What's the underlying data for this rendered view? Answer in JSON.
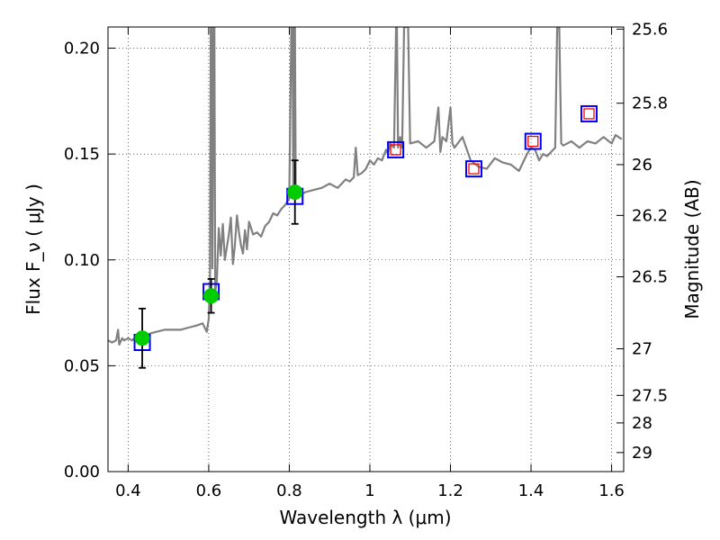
{
  "chart_data": {
    "type": "scatter",
    "xlabel": "Wavelength  λ (μm)",
    "ylabel": "Flux  F_ν  ( μJy )",
    "ylabel_right": "Magnitude (AB)",
    "xlim": [
      0.35,
      1.63
    ],
    "ylim": [
      0.0,
      0.21
    ],
    "grid": true,
    "x_ticks": [
      0.4,
      0.6,
      0.8,
      1.0,
      1.2,
      1.4,
      1.6
    ],
    "x_tick_labels": [
      "0.4",
      "0.6",
      "0.8",
      "1",
      "1.2",
      "1.4",
      "1.6"
    ],
    "y_ticks": [
      0.0,
      0.05,
      0.1,
      0.15,
      0.2
    ],
    "y_tick_labels": [
      "0.00",
      "0.05",
      "0.10",
      "0.15",
      "0.20"
    ],
    "right_ticks": [
      {
        "label": "25.6",
        "flux": 0.209
      },
      {
        "label": "25.8",
        "flux": 0.174
      },
      {
        "label": "26",
        "flux": 0.145
      },
      {
        "label": "26.2",
        "flux": 0.121
      },
      {
        "label": "26.5",
        "flux": 0.092
      },
      {
        "label": "27",
        "flux": 0.058
      },
      {
        "label": "27.5",
        "flux": 0.036
      },
      {
        "label": "28",
        "flux": 0.023
      },
      {
        "label": "29",
        "flux": 0.009
      }
    ],
    "colors": {
      "spectrum": "#808080",
      "observed": "#00cc00",
      "model_box": "#0000ff",
      "model_inner": "#ff0000",
      "errorbar": "#000000",
      "grid": "#000000"
    },
    "series": [
      {
        "kind": "line",
        "points": [
          [
            0.35,
            0.062
          ],
          [
            0.36,
            0.061
          ],
          [
            0.37,
            0.062
          ],
          [
            0.375,
            0.067
          ],
          [
            0.378,
            0.06
          ],
          [
            0.385,
            0.063
          ],
          [
            0.39,
            0.062
          ],
          [
            0.4,
            0.063
          ],
          [
            0.41,
            0.062
          ],
          [
            0.42,
            0.064
          ],
          [
            0.43,
            0.063
          ],
          [
            0.44,
            0.063
          ],
          [
            0.45,
            0.065
          ],
          [
            0.47,
            0.066
          ],
          [
            0.49,
            0.067
          ],
          [
            0.51,
            0.067
          ],
          [
            0.53,
            0.067
          ],
          [
            0.55,
            0.068
          ],
          [
            0.57,
            0.069
          ],
          [
            0.585,
            0.07
          ],
          [
            0.595,
            0.066
          ],
          [
            0.6,
            0.072
          ],
          [
            0.603,
            0.09
          ],
          [
            0.605,
            0.21
          ],
          [
            0.607,
            0.21
          ],
          [
            0.609,
            0.096
          ],
          [
            0.612,
            0.21
          ],
          [
            0.614,
            0.21
          ],
          [
            0.616,
            0.085
          ],
          [
            0.62,
            0.09
          ],
          [
            0.625,
            0.115
          ],
          [
            0.63,
            0.102
          ],
          [
            0.635,
            0.117
          ],
          [
            0.64,
            0.1
          ],
          [
            0.65,
            0.112
          ],
          [
            0.655,
            0.12
          ],
          [
            0.66,
            0.098
          ],
          [
            0.665,
            0.107
          ],
          [
            0.67,
            0.121
          ],
          [
            0.675,
            0.113
          ],
          [
            0.68,
            0.107
          ],
          [
            0.685,
            0.103
          ],
          [
            0.69,
            0.114
          ],
          [
            0.695,
            0.105
          ],
          [
            0.7,
            0.118
          ],
          [
            0.71,
            0.112
          ],
          [
            0.72,
            0.113
          ],
          [
            0.73,
            0.111
          ],
          [
            0.74,
            0.116
          ],
          [
            0.75,
            0.118
          ],
          [
            0.76,
            0.122
          ],
          [
            0.77,
            0.121
          ],
          [
            0.78,
            0.124
          ],
          [
            0.79,
            0.126
          ],
          [
            0.8,
            0.129
          ],
          [
            0.805,
            0.21
          ],
          [
            0.808,
            0.21
          ],
          [
            0.81,
            0.133
          ],
          [
            0.812,
            0.21
          ],
          [
            0.814,
            0.21
          ],
          [
            0.816,
            0.131
          ],
          [
            0.82,
            0.13
          ],
          [
            0.83,
            0.131
          ],
          [
            0.84,
            0.132
          ],
          [
            0.86,
            0.133
          ],
          [
            0.88,
            0.134
          ],
          [
            0.9,
            0.136
          ],
          [
            0.92,
            0.134
          ],
          [
            0.94,
            0.138
          ],
          [
            0.95,
            0.137
          ],
          [
            0.96,
            0.139
          ],
          [
            0.965,
            0.153
          ],
          [
            0.97,
            0.14
          ],
          [
            0.98,
            0.141
          ],
          [
            0.99,
            0.143
          ],
          [
            1.0,
            0.147
          ],
          [
            1.01,
            0.145
          ],
          [
            1.02,
            0.148
          ],
          [
            1.03,
            0.147
          ],
          [
            1.04,
            0.152
          ],
          [
            1.045,
            0.15
          ],
          [
            1.05,
            0.155
          ],
          [
            1.06,
            0.153
          ],
          [
            1.065,
            0.21
          ],
          [
            1.067,
            0.21
          ],
          [
            1.07,
            0.153
          ],
          [
            1.075,
            0.158
          ],
          [
            1.08,
            0.153
          ],
          [
            1.085,
            0.21
          ],
          [
            1.09,
            0.21
          ],
          [
            1.095,
            0.21
          ],
          [
            1.1,
            0.155
          ],
          [
            1.12,
            0.156
          ],
          [
            1.14,
            0.153
          ],
          [
            1.16,
            0.156
          ],
          [
            1.17,
            0.172
          ],
          [
            1.175,
            0.151
          ],
          [
            1.18,
            0.158
          ],
          [
            1.19,
            0.156
          ],
          [
            1.2,
            0.172
          ],
          [
            1.205,
            0.155
          ],
          [
            1.21,
            0.153
          ],
          [
            1.23,
            0.158
          ],
          [
            1.25,
            0.147
          ],
          [
            1.27,
            0.144
          ],
          [
            1.29,
            0.143
          ],
          [
            1.31,
            0.148
          ],
          [
            1.33,
            0.146
          ],
          [
            1.35,
            0.145
          ],
          [
            1.37,
            0.142
          ],
          [
            1.39,
            0.15
          ],
          [
            1.4,
            0.153
          ],
          [
            1.41,
            0.152
          ],
          [
            1.42,
            0.147
          ],
          [
            1.43,
            0.15
          ],
          [
            1.44,
            0.149
          ],
          [
            1.45,
            0.151
          ],
          [
            1.46,
            0.153
          ],
          [
            1.465,
            0.21
          ],
          [
            1.47,
            0.21
          ],
          [
            1.475,
            0.155
          ],
          [
            1.48,
            0.154
          ],
          [
            1.5,
            0.156
          ],
          [
            1.52,
            0.153
          ],
          [
            1.54,
            0.156
          ],
          [
            1.56,
            0.155
          ],
          [
            1.58,
            0.158
          ],
          [
            1.6,
            0.155
          ],
          [
            1.61,
            0.159
          ],
          [
            1.625,
            0.157
          ]
        ]
      },
      {
        "kind": "observed",
        "points": [
          {
            "x": 0.435,
            "y": 0.063,
            "yerr": 0.014
          },
          {
            "x": 0.606,
            "y": 0.083,
            "yerr": 0.008
          },
          {
            "x": 0.814,
            "y": 0.132,
            "yerr": 0.015
          }
        ]
      },
      {
        "kind": "model",
        "points": [
          {
            "x": 0.435,
            "y": 0.061,
            "inner": false
          },
          {
            "x": 0.606,
            "y": 0.085,
            "inner": false
          },
          {
            "x": 0.814,
            "y": 0.13,
            "inner": false
          },
          {
            "x": 1.064,
            "y": 0.152,
            "inner": true
          },
          {
            "x": 1.258,
            "y": 0.143,
            "inner": true
          },
          {
            "x": 1.405,
            "y": 0.156,
            "inner": true
          },
          {
            "x": 1.544,
            "y": 0.169,
            "inner": true
          }
        ]
      }
    ]
  }
}
